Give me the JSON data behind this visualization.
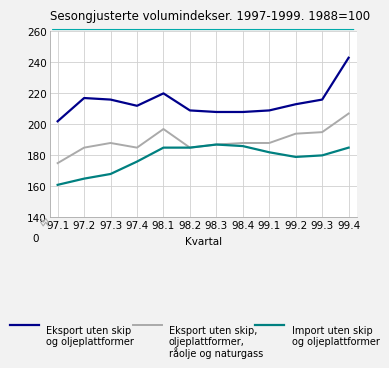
{
  "title": "Sesongjusterte volumindekser. 1997-1999. 1988=100",
  "xlabel": "Kvartal",
  "x_labels": [
    "97.1",
    "97.2",
    "97.3",
    "97.4",
    "98.1",
    "98.2",
    "98.3",
    "98.4",
    "99.1",
    "99.2",
    "99.3",
    "99.4"
  ],
  "ylim_main": [
    140,
    260
  ],
  "ylim_break": [
    0,
    20
  ],
  "yticks_main": [
    140,
    160,
    180,
    200,
    220,
    240,
    260
  ],
  "ytick_zero": 0,
  "series": [
    {
      "label": "Eksport uten skip\nog oljeplattformer",
      "color": "#00008B",
      "linewidth": 1.6,
      "values": [
        202,
        217,
        216,
        212,
        220,
        209,
        208,
        208,
        209,
        213,
        216,
        243
      ]
    },
    {
      "label": "Eksport uten skip,\noljeplattformer,\nråolje og naturgass",
      "color": "#AAAAAA",
      "linewidth": 1.4,
      "values": [
        175,
        185,
        188,
        185,
        197,
        185,
        187,
        188,
        188,
        194,
        195,
        207
      ]
    },
    {
      "label": "Import uten skip\nog oljeplattformer",
      "color": "#008080",
      "linewidth": 1.6,
      "values": [
        161,
        165,
        168,
        176,
        185,
        185,
        187,
        186,
        182,
        179,
        180,
        185
      ]
    }
  ],
  "bg_color": "#F2F2F2",
  "plot_bg": "#FFFFFF",
  "grid_color": "#D0D0D0",
  "title_fontsize": 8.5,
  "tick_fontsize": 7.5,
  "legend_fontsize": 7.0
}
